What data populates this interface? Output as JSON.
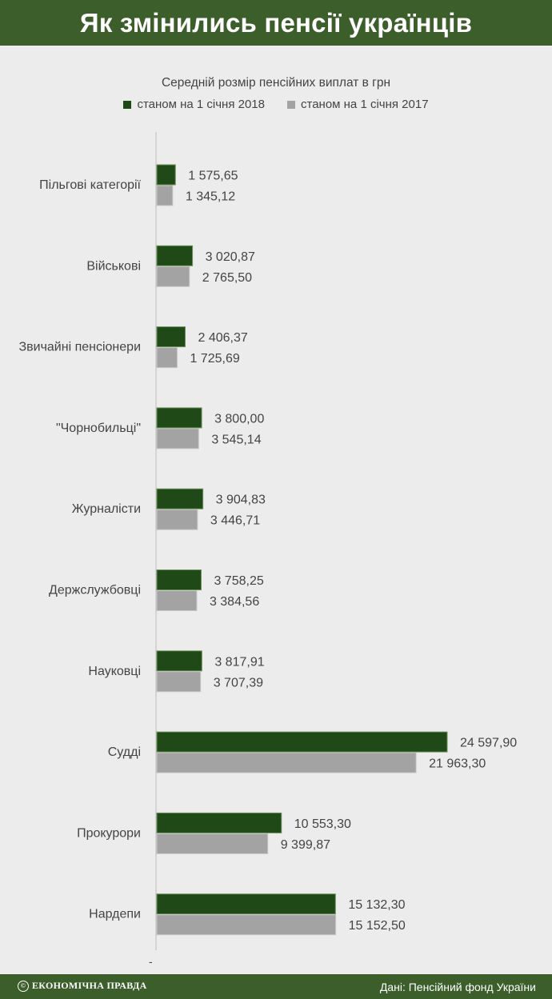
{
  "header": {
    "title": "Як змінились пенсії українців"
  },
  "footer": {
    "brand_mark": "©",
    "brand": "ЕКОНОМІЧНА ПРАВДА",
    "source": "Дані: Пенсійний фонд України"
  },
  "colors": {
    "series_2018": "#1f4a17",
    "series_2017": "#a3a3a3",
    "header_bg": "#3b5e2b"
  },
  "chart_data": {
    "type": "bar",
    "orientation": "horizontal",
    "title": "Середній розмір пенсійних виплат в грн",
    "categories": [
      "Пільгові категорії",
      "Військові",
      "Звичайні пенсіонери",
      "\"Чорнобильці\"",
      "Журналісти",
      "Держслужбовці",
      "Науковці",
      "Судді",
      "Прокурори",
      "Нардепи"
    ],
    "series": [
      {
        "name": "станом на 1 січня 2018",
        "values": [
          1575.65,
          3020.87,
          2406.37,
          3800.0,
          3904.83,
          3758.25,
          3817.91,
          24597.9,
          10553.3,
          15132.3
        ],
        "labels": [
          "1 575,65",
          "3 020,87",
          "2 406,37",
          "3 800,00",
          "3 904,83",
          "3 758,25",
          "3 817,91",
          "24 597,90",
          "10 553,30",
          "15 132,30"
        ]
      },
      {
        "name": "станом на 1 січня 2017",
        "values": [
          1345.12,
          2765.5,
          1725.69,
          3545.14,
          3446.71,
          3384.56,
          3707.39,
          21963.3,
          9399.87,
          15152.5
        ],
        "labels": [
          "1 345,12",
          "2 765,50",
          "1 725,69",
          "3 545,14",
          "3 446,71",
          "3 384,56",
          "3 707,39",
          "21 963,30",
          "9 399,87",
          "15 152,50"
        ]
      }
    ],
    "axis_tick_label": "-",
    "legend_position": "top-center",
    "grid": false
  }
}
